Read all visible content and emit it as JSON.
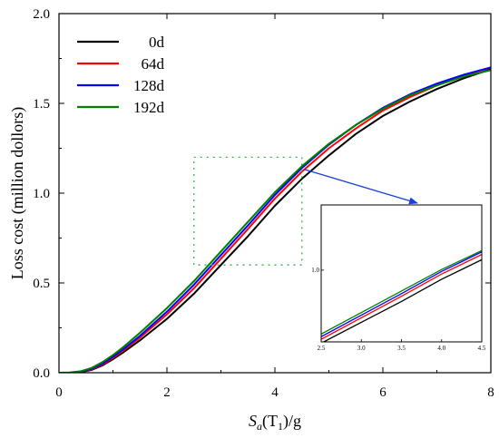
{
  "chart_data": {
    "type": "line",
    "title": "",
    "xlabel": {
      "base": "S",
      "sub1": "a",
      "mid": "(T",
      "sub2": "1",
      "end": ")/g"
    },
    "ylabel": "Loss cost (million dollors)",
    "xlim": [
      0,
      8
    ],
    "ylim": [
      0,
      2.0
    ],
    "xticks": [
      0,
      2,
      4,
      6,
      8
    ],
    "xtick_labels": [
      "0",
      "2",
      "4",
      "6",
      "8"
    ],
    "yticks": [
      0,
      0.5,
      1.0,
      1.5,
      2.0
    ],
    "ytick_labels": [
      "0.0",
      "0.5",
      "1.0",
      "1.5",
      "2.0"
    ],
    "grid": false,
    "legend_position": "top-left",
    "series": [
      {
        "name": "0d",
        "color": "#000000",
        "x": [
          0,
          0.2,
          0.4,
          0.6,
          0.8,
          1.0,
          1.2,
          1.5,
          2.0,
          2.5,
          3.0,
          3.5,
          4.0,
          4.5,
          5.0,
          5.5,
          6.0,
          6.5,
          7.0,
          7.5,
          8.0
        ],
        "y": [
          0,
          0,
          0.003,
          0.015,
          0.04,
          0.075,
          0.115,
          0.18,
          0.3,
          0.44,
          0.6,
          0.76,
          0.93,
          1.08,
          1.21,
          1.33,
          1.43,
          1.51,
          1.58,
          1.64,
          1.69
        ]
      },
      {
        "name": "64d",
        "color": "#ff0000",
        "x": [
          0,
          0.2,
          0.4,
          0.6,
          0.8,
          1.0,
          1.2,
          1.5,
          2.0,
          2.5,
          3.0,
          3.5,
          4.0,
          4.5,
          5.0,
          5.5,
          6.0,
          6.5,
          7.0,
          7.5,
          8.0
        ],
        "y": [
          0,
          0,
          0.004,
          0.018,
          0.045,
          0.082,
          0.125,
          0.195,
          0.325,
          0.47,
          0.635,
          0.8,
          0.97,
          1.12,
          1.25,
          1.36,
          1.46,
          1.535,
          1.6,
          1.655,
          1.7
        ]
      },
      {
        "name": "128d",
        "color": "#0000ff",
        "x": [
          0,
          0.2,
          0.4,
          0.6,
          0.8,
          1.0,
          1.2,
          1.5,
          2.0,
          2.5,
          3.0,
          3.5,
          4.0,
          4.5,
          5.0,
          5.5,
          6.0,
          6.5,
          7.0,
          7.5,
          8.0
        ],
        "y": [
          0,
          0,
          0.005,
          0.021,
          0.05,
          0.088,
          0.133,
          0.205,
          0.34,
          0.49,
          0.655,
          0.82,
          0.99,
          1.14,
          1.27,
          1.38,
          1.475,
          1.55,
          1.61,
          1.66,
          1.7
        ]
      },
      {
        "name": "192d",
        "color": "#008000",
        "x": [
          0,
          0.2,
          0.4,
          0.6,
          0.8,
          1.0,
          1.2,
          1.5,
          2.0,
          2.5,
          3.0,
          3.5,
          4.0,
          4.5,
          5.0,
          5.5,
          6.0,
          6.5,
          7.0,
          7.5,
          8.0
        ],
        "y": [
          0,
          0.001,
          0.008,
          0.026,
          0.058,
          0.098,
          0.145,
          0.222,
          0.36,
          0.51,
          0.675,
          0.84,
          1.005,
          1.15,
          1.275,
          1.38,
          1.47,
          1.545,
          1.6,
          1.65,
          1.685
        ]
      }
    ],
    "zoom_region": {
      "xlim": [
        2.5,
        4.5
      ],
      "ylim": [
        0.6,
        1.2
      ]
    },
    "inset": {
      "xlim": [
        2.5,
        4.5
      ],
      "ylim": [
        0.45,
        1.5
      ],
      "xticks": [
        2.5,
        3.0,
        3.5,
        4.0,
        4.5
      ],
      "xtick_labels": [
        "2.5",
        "3.0",
        "3.5",
        "4.0",
        "4.5"
      ],
      "yticks": [
        1.0
      ],
      "ytick_labels": [
        "1.0"
      ]
    }
  }
}
